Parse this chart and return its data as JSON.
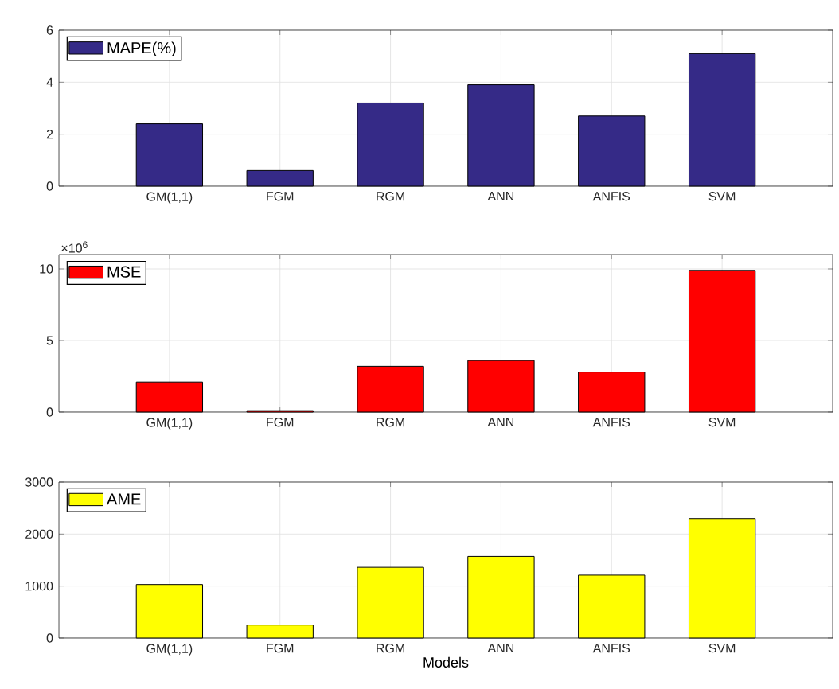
{
  "chart_data": [
    {
      "type": "bar",
      "categories": [
        "GM(1,1)",
        "FGM",
        "RGM",
        "ANN",
        "ANFIS",
        "SVM"
      ],
      "series": [
        {
          "name": "MAPE(%)",
          "color": "#352a87",
          "values": [
            2.4,
            0.6,
            3.2,
            3.9,
            2.7,
            5.1
          ]
        }
      ],
      "ylim": [
        0,
        6
      ],
      "yticks": [
        0,
        2,
        4,
        6
      ],
      "grid": true,
      "legend": "top left"
    },
    {
      "type": "bar",
      "categories": [
        "GM(1,1)",
        "FGM",
        "RGM",
        "ANN",
        "ANFIS",
        "SVM"
      ],
      "series": [
        {
          "name": "MSE",
          "color": "#ff0000",
          "values": [
            2.1,
            0.1,
            3.2,
            3.6,
            2.8,
            9.9
          ]
        }
      ],
      "ylim": [
        0,
        11
      ],
      "yticks": [
        0,
        5,
        10
      ],
      "annotations": [
        "×10$^{6}$"
      ],
      "grid": true,
      "legend": "top left"
    },
    {
      "type": "bar",
      "categories": [
        "GM(1,1)",
        "FGM",
        "RGM",
        "ANN",
        "ANFIS",
        "SVM"
      ],
      "series": [
        {
          "name": "AME",
          "color": "#ffff00",
          "values": [
            1030,
            250,
            1360,
            1570,
            1210,
            2300
          ]
        }
      ],
      "ylim": [
        0,
        3000
      ],
      "yticks": [
        0,
        1000,
        2000,
        3000
      ],
      "xlabel": "Models",
      "grid": true,
      "legend": "top left"
    }
  ]
}
